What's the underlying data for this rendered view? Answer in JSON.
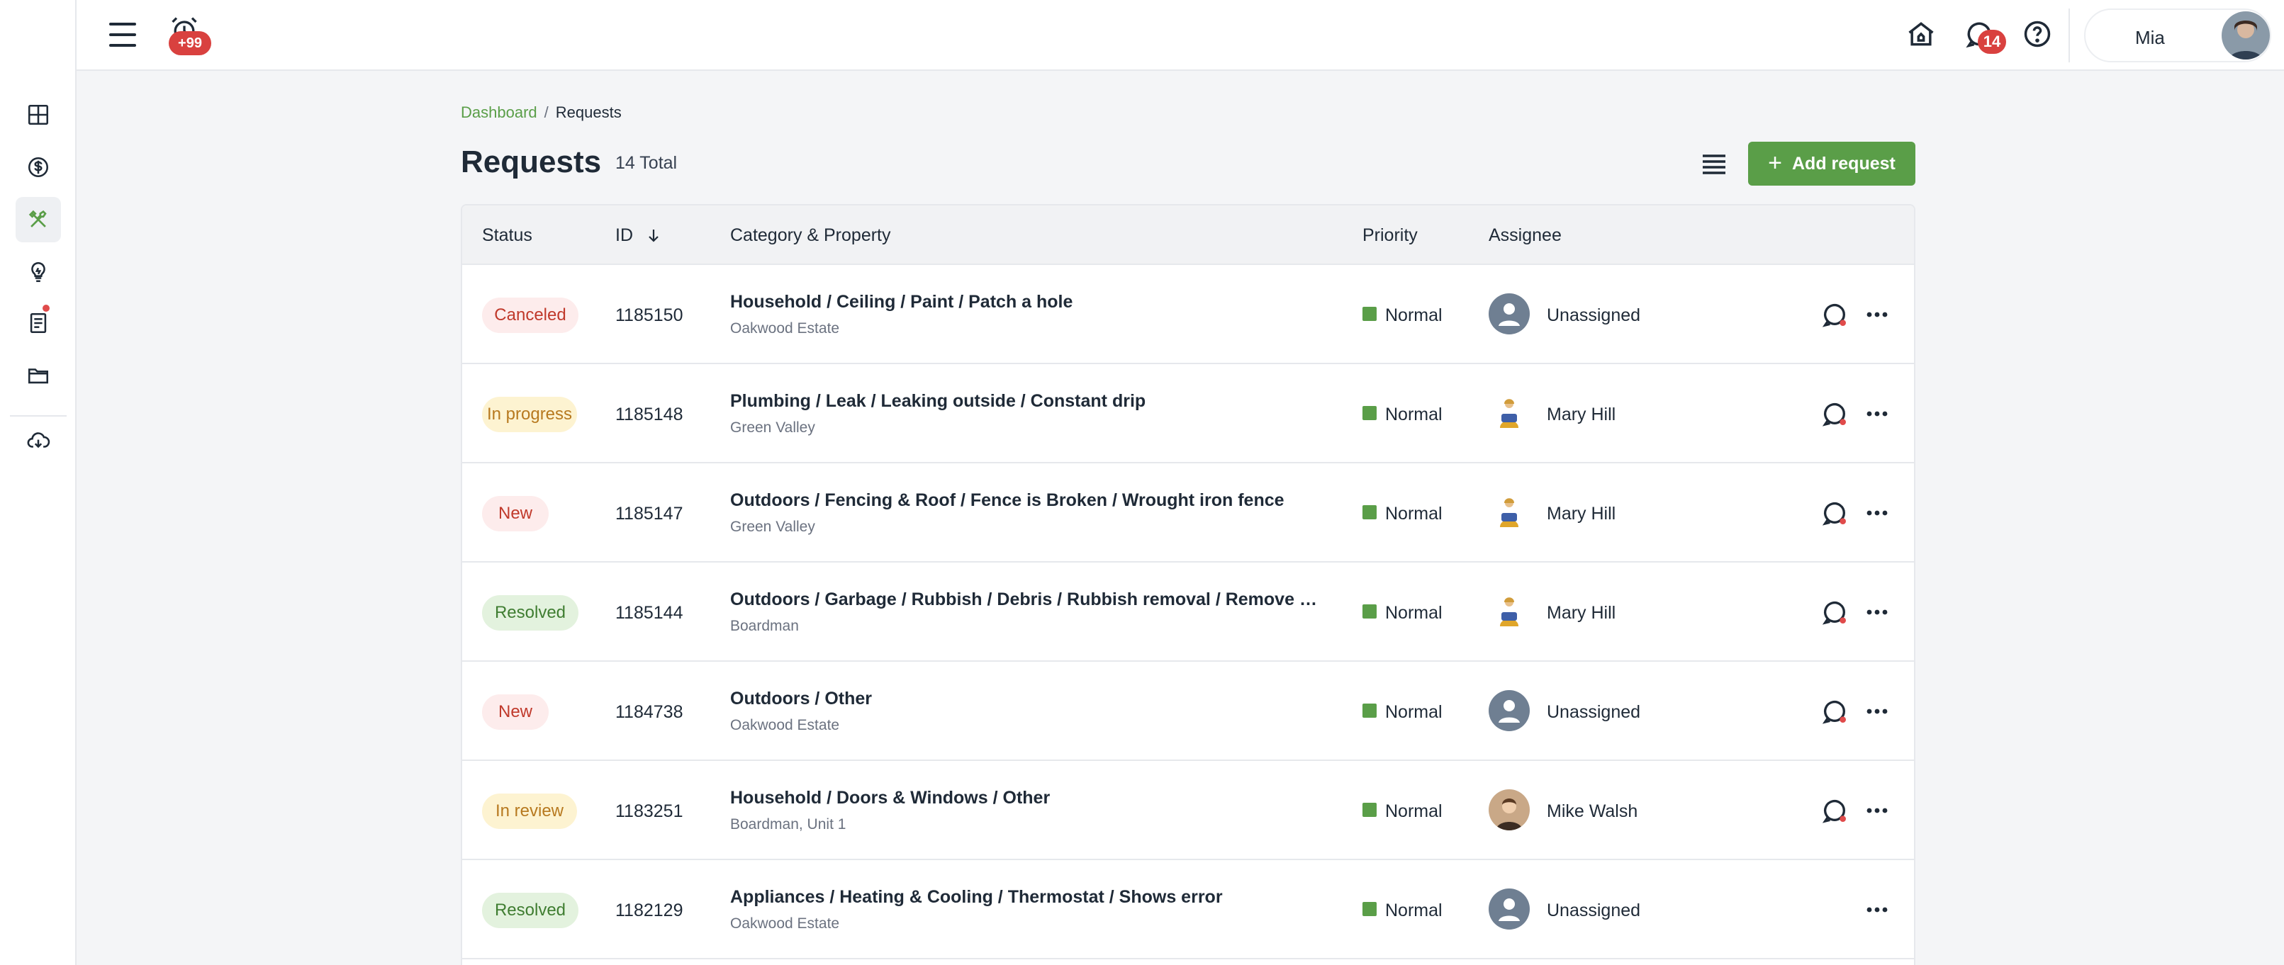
{
  "sidebar": {
    "icons": [
      "dashboard-icon",
      "dollar-circle-icon",
      "tools-icon",
      "lightbulb-icon",
      "document-icon",
      "folder-icon",
      "cloud-download-icon"
    ]
  },
  "topbar": {
    "alarm_badge": "+99",
    "chat_badge": "14",
    "user_name": "Mia"
  },
  "breadcrumb": {
    "parent": "Dashboard",
    "separator": "/",
    "current": "Requests"
  },
  "page": {
    "title": "Requests",
    "total": "14 Total",
    "add_label": "Add request"
  },
  "table": {
    "headers": {
      "status": "Status",
      "id": "ID",
      "category": "Category & Property",
      "priority": "Priority",
      "assignee": "Assignee"
    },
    "rows": [
      {
        "status": "Canceled",
        "id": "1185150",
        "category": "Household / Ceiling / Paint / Patch a hole",
        "property": "Oakwood Estate",
        "priority": "Normal",
        "assignee": "Unassigned",
        "has_chat": true
      },
      {
        "status": "In progress",
        "id": "1185148",
        "category": "Plumbing / Leak / Leaking outside / Constant drip",
        "property": "Green Valley",
        "priority": "Normal",
        "assignee": "Mary Hill",
        "has_chat": true
      },
      {
        "status": "New",
        "id": "1185147",
        "category": "Outdoors / Fencing & Roof / Fence is Broken / Wrought iron fence",
        "property": "Green Valley",
        "priority": "Normal",
        "assignee": "Mary Hill",
        "has_chat": true
      },
      {
        "status": "Resolved",
        "id": "1185144",
        "category": "Outdoors / Garbage / Rubbish / Debris / Rubbish removal / Remove garb...",
        "property": "Boardman",
        "priority": "Normal",
        "assignee": "Mary Hill",
        "has_chat": true
      },
      {
        "status": "New",
        "id": "1184738",
        "category": "Outdoors / Other",
        "property": "Oakwood Estate",
        "priority": "Normal",
        "assignee": "Unassigned",
        "has_chat": true
      },
      {
        "status": "In review",
        "id": "1183251",
        "category": "Household / Doors & Windows / Other",
        "property": "Boardman, Unit 1",
        "priority": "Normal",
        "assignee": "Mike Walsh",
        "has_chat": true
      },
      {
        "status": "Resolved",
        "id": "1182129",
        "category": "Appliances / Heating & Cooling / Thermostat / Shows error",
        "property": "Oakwood Estate",
        "priority": "Normal",
        "assignee": "Unassigned",
        "has_chat": false
      }
    ]
  },
  "colors": {
    "accent": "#5a9e48",
    "badge_red": "#d9413f"
  }
}
